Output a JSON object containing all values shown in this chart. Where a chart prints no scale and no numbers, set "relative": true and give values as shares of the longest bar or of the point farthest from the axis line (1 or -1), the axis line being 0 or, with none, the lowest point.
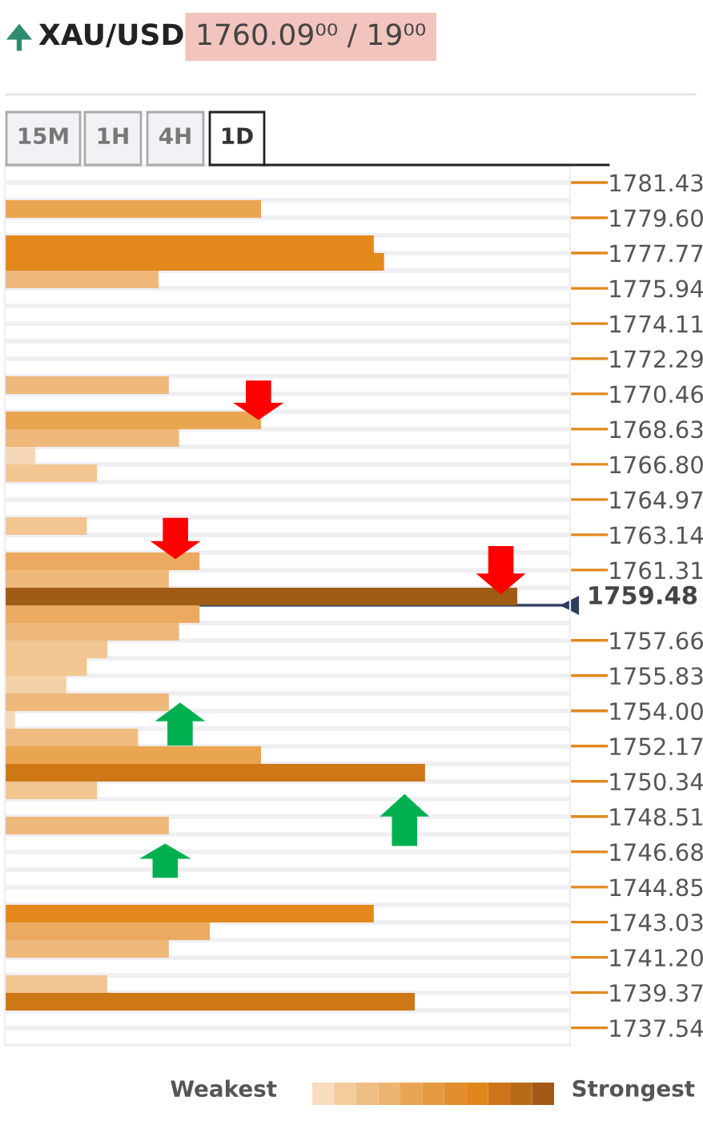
{
  "chart_data": {
    "type": "bar",
    "orientation": "horizontal",
    "relative": true,
    "title": "XAU/USD",
    "subtitle": "1760.09⁰⁰ / 19⁰⁰",
    "x": [
      1780.06,
      1778.23,
      1777.31,
      1776.4,
      1770.91,
      1769.08,
      1768.17,
      1767.25,
      1766.34,
      1763.59,
      1761.76,
      1760.85,
      1759.94,
      1759.02,
      1758.11,
      1757.19,
      1756.28,
      1755.36,
      1754.45,
      1753.53,
      1752.62,
      1751.7,
      1750.79,
      1749.87,
      1748.04,
      1743.47,
      1742.56,
      1741.64,
      1739.81,
      1738.9
    ],
    "values": [
      0.5,
      0.72,
      0.74,
      0.3,
      0.32,
      0.5,
      0.34,
      0.06,
      0.18,
      0.16,
      0.38,
      0.32,
      1.0,
      0.38,
      0.34,
      0.2,
      0.16,
      0.12,
      0.32,
      0.02,
      0.26,
      0.5,
      0.82,
      0.18,
      0.32,
      0.72,
      0.4,
      0.32,
      0.2,
      0.8
    ],
    "colors": [
      "#e9a550",
      "#e2881c",
      "#e2881c",
      "#eeb87a",
      "#eeb87a",
      "#e9a550",
      "#eeb87a",
      "#f6d8b8",
      "#f2c591",
      "#f2c591",
      "#ebaa60",
      "#eeb87a",
      "#a05c14",
      "#ebaa60",
      "#eeb87a",
      "#f2c591",
      "#f2c591",
      "#f4d0a8",
      "#eeb87a",
      "#f6d8b8",
      "#efbb80",
      "#e9a550",
      "#cd7716",
      "#f2c591",
      "#eeb87a",
      "#e2881c",
      "#ebaa60",
      "#eeb87a",
      "#f2c591",
      "#cd7716"
    ],
    "ylim": [
      1736.61,
      1782.345
    ],
    "yticks": [
      1781.43,
      {
        "value": 1779.6,
        "label": "1779.60"
      },
      1777.77,
      1775.94,
      1774.11,
      1772.29,
      1770.46,
      1768.63,
      {
        "value": 1766.8,
        "label": "1766.80"
      },
      1764.97,
      1763.14,
      1761.31,
      1757.66,
      1755.83,
      {
        "value": 1754,
        "label": "1754.00"
      },
      1752.17,
      1750.34,
      1748.51,
      1746.68,
      1744.85,
      1743.03,
      {
        "value": 1741.2,
        "label": "1741.20"
      },
      1739.37,
      1737.54
    ],
    "ref_lines": [
      {
        "axis": "y",
        "value": 1759.48,
        "label": "1759.48",
        "color": "#2c3e60"
      }
    ],
    "grid": "y",
    "annotations": [
      "15M",
      "1H",
      "4H",
      "1D",
      "Weakest",
      "Strongest"
    ]
  }
}
